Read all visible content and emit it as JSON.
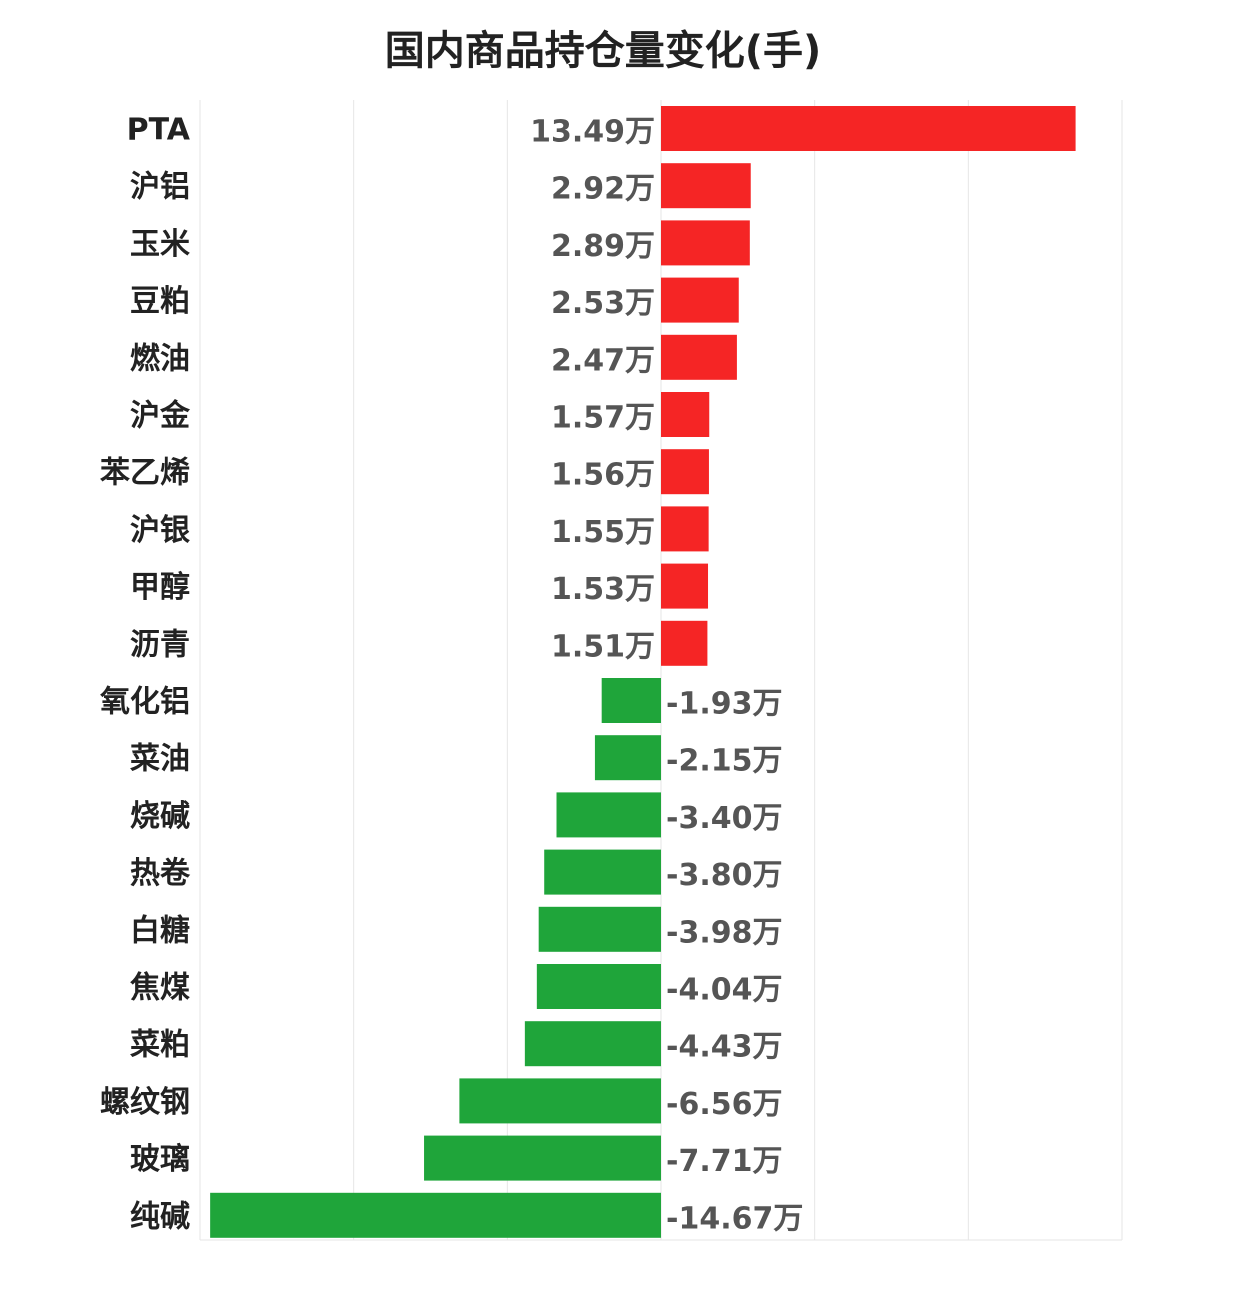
{
  "chart_data": {
    "type": "bar",
    "orientation": "horizontal",
    "title": "国内商品持仓量变化(手)",
    "xlabel": "",
    "ylabel": "",
    "unit_suffix": "万",
    "grid": true,
    "categories": [
      "PTA",
      "沪铝",
      "玉米",
      "豆粕",
      "燃油",
      "沪金",
      "苯乙烯",
      "沪银",
      "甲醇",
      "沥青",
      "氧化铝",
      "菜油",
      "烧碱",
      "热卷",
      "白糖",
      "焦煤",
      "菜粕",
      "螺纹钢",
      "玻璃",
      "纯碱"
    ],
    "values": [
      13.49,
      2.92,
      2.89,
      2.53,
      2.47,
      1.57,
      1.56,
      1.55,
      1.53,
      1.51,
      -1.93,
      -2.15,
      -3.4,
      -3.8,
      -3.98,
      -4.04,
      -4.43,
      -6.56,
      -7.71,
      -14.67
    ],
    "value_labels": [
      "13.49万",
      "2.92万",
      "2.89万",
      "2.53万",
      "2.47万",
      "1.57万",
      "1.56万",
      "1.55万",
      "1.53万",
      "1.51万",
      "-1.93万",
      "-2.15万",
      "-3.40万",
      "-3.80万",
      "-3.98万",
      "-4.04万",
      "-4.43万",
      "-6.56万",
      "-7.71万",
      "-14.67万"
    ],
    "xlim": [
      -15,
      15
    ],
    "colors": {
      "positive": "#f52525",
      "negative": "#1fa53a",
      "grid": "#e6e6e6"
    }
  }
}
